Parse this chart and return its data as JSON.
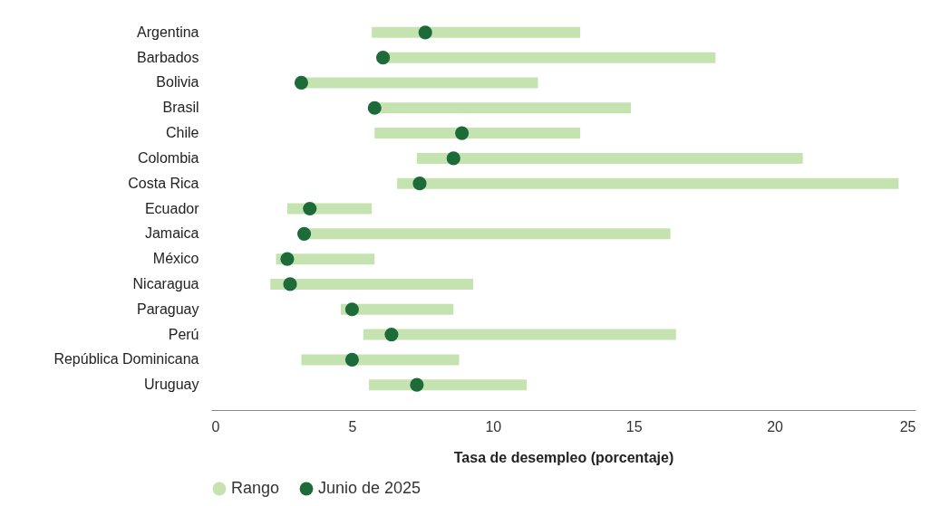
{
  "chart_data": {
    "type": "bar",
    "orientation": "horizontal",
    "xlabel": "Tasa de desempleo (porcentaje)",
    "categories": [
      "Argentina",
      "Barbados",
      "Bolivia",
      "Brasil",
      "Chile",
      "Colombia",
      "Costa Rica",
      "Ecuador",
      "Jamaica",
      "México",
      "Nicaragua",
      "Paraguay",
      "Perú",
      "República Dominicana",
      "Uruguay"
    ],
    "series": [
      {
        "name": "Rango",
        "type": "bar",
        "color": "#c5e3b0",
        "base": [
          5.7,
          6.1,
          3.2,
          5.8,
          5.8,
          7.3,
          6.6,
          2.7,
          3.3,
          2.3,
          2.1,
          4.6,
          5.4,
          3.2,
          5.6
        ],
        "values": [
          7.4,
          11.8,
          8.4,
          9.1,
          7.3,
          13.7,
          17.8,
          3.0,
          13.0,
          3.5,
          7.2,
          4.0,
          11.1,
          5.6,
          5.6
        ]
      },
      {
        "name": "Junio de 2025",
        "type": "scatter",
        "color": "#1e6b3a",
        "values": [
          7.6,
          6.1,
          3.2,
          5.8,
          8.9,
          8.6,
          7.4,
          3.5,
          3.3,
          2.7,
          2.8,
          5.0,
          6.4,
          5.0,
          7.3
        ]
      }
    ],
    "xlim": [
      0,
      25
    ],
    "xticks": [
      0,
      5,
      10,
      15,
      20,
      25
    ],
    "grid": false,
    "legend": "bottom"
  }
}
